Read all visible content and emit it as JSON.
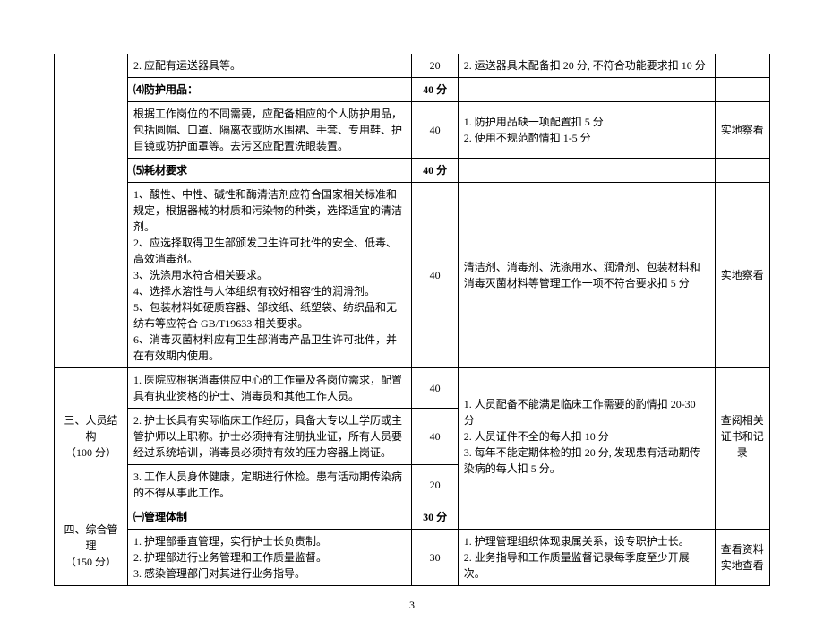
{
  "rows": {
    "r1": {
      "c2": "2. 应配有运送器具等。",
      "c3": "20",
      "c4": "2. 运送器具未配备扣 20 分, 不符合功能要求扣 10 分"
    },
    "r2": {
      "c2": "⑷防护用品：",
      "c3": "40 分"
    },
    "r3": {
      "c2": "根据工作岗位的不同需要，应配备相应的个人防护用品，包括圆帽、口罩、隔离衣或防水围裙、手套、专用鞋、护目镜或防护面罩等。去污区应配置洗眼装置。",
      "c3": "40",
      "c4": "1. 防护用品缺一项配置扣 5 分\n2. 使用不规范酌情扣 1-5 分",
      "c5": "实地察看"
    },
    "r4": {
      "c2": "⑸耗材要求",
      "c3": "40 分"
    },
    "r5": {
      "c2": "1、酸性、中性、碱性和酶清洁剂应符合国家相关标准和规定，根据器械的材质和污染物的种类，选择适宜的清洁剂。\n2、应选择取得卫生部颁发卫生许可批件的安全、低毒、高效消毒剂。\n3、洗涤用水符合相关要求。\n4、选择水溶性与人体组织有较好相容性的润滑剂。\n5、包装材料如硬质容器、邹纹纸、纸塑袋、纺织品和无纺布等应符合 GB/T19633 相关要求。\n6、消毒灭菌材料应有卫生部消毒产品卫生许可批件，并在有效期内使用。",
      "c3": "40",
      "c4": "清洁剂、消毒剂、洗涤用水、润滑剂、包装材料和消毒灭菌材料等管理工作一项不符合要求扣 5 分",
      "c5": "实地察看"
    },
    "r6": {
      "c1": "三、人员结构\n（100 分）",
      "c2": "1. 医院应根据消毒供应中心的工作量及各岗位需求，配置具有执业资格的护士、消毒员和其他工作人员。",
      "c3": "40",
      "c4": "1. 人员配备不能满足临床工作需要的酌情扣 20-30 分\n2. 人员证件不全的每人扣 10 分\n3. 每年不能定期体检的扣 20 分, 发现患有活动期传染病的每人扣 5 分。",
      "c5": "查阅相关证书和记录"
    },
    "r7": {
      "c2": "2. 护士长具有实际临床工作经历，具备大专以上学历或主管护师以上职称。护士必须持有注册执业证，所有人员要经过系统培训，消毒员必须持有效的压力容器上岗证。",
      "c3": "40"
    },
    "r8": {
      "c2": "3. 工作人员身体健康，定期进行体检。患有活动期传染病的不得从事此工作。",
      "c3": "20"
    },
    "r9": {
      "c1": "四、综合管理\n（150 分）",
      "c2": "㈠管理体制",
      "c3": "30 分"
    },
    "r10": {
      "c2": "1. 护理部垂直管理，实行护士长负责制。\n2. 护理部进行业务管理和工作质量监督。\n3. 感染管理部门对其进行业务指导。",
      "c3": "30",
      "c4": "1. 护理管理组织体现隶属关系，设专职护士长。\n2. 业务指导和工作质量监督记录每季度至少开展一次。",
      "c5": "查看资料\n实地查看"
    }
  },
  "pageNumber": "3"
}
